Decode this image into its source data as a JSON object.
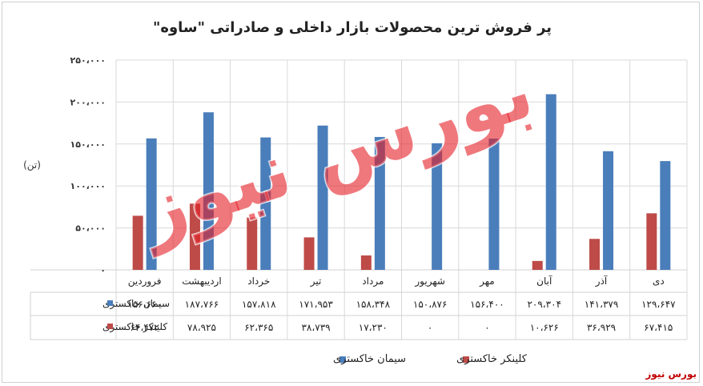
{
  "chart_data": {
    "type": "bar",
    "title": "پر فروش ترین محصولات بازار داخلی و صادراتی \"ساوه\"",
    "ylabel": "(تن)",
    "ylim": [
      0,
      250000
    ],
    "yticks": [
      "۰",
      "۵۰،۰۰۰",
      "۱۰۰،۰۰۰",
      "۱۵۰،۰۰۰",
      "۲۰۰،۰۰۰",
      "۲۵۰،۰۰۰"
    ],
    "categories": [
      "فروردین",
      "اردیبهشت",
      "خرداد",
      "تیر",
      "مرداد",
      "شهریور",
      "مهر",
      "آبان",
      "آذر",
      "دی"
    ],
    "series": [
      {
        "name": "سیمان خاکستری",
        "color": "#4a7ebb",
        "values": [
          156660,
          187766,
          157818,
          171953,
          158348,
          150876,
          156400,
          209304,
          141379,
          129647
        ],
        "labels": [
          "۱۵۶،۶۶۰",
          "۱۸۷،۷۶۶",
          "۱۵۷،۸۱۸",
          "۱۷۱،۹۵۳",
          "۱۵۸،۳۴۸",
          "۱۵۰،۸۷۶",
          "۱۵۶،۴۰۰",
          "۲۰۹،۳۰۴",
          "۱۴۱،۳۷۹",
          "۱۲۹،۶۴۷"
        ]
      },
      {
        "name": "کلینکر خاکستری",
        "color": "#be4b48",
        "values": [
          64472,
          78925,
          62365,
          38739,
          17230,
          0,
          0,
          10626,
          36929,
          67415
        ],
        "labels": [
          "۶۴،۴۷۲",
          "۷۸،۹۲۵",
          "۶۲،۳۶۵",
          "۳۸،۷۳۹",
          "۱۷،۲۳۰",
          "۰",
          "۰",
          "۱۰،۶۲۶",
          "۳۶،۹۲۹",
          "۶۷،۴۱۵"
        ]
      }
    ],
    "grid": true,
    "legend": "bottom",
    "table": true
  },
  "watermark": "بورس نیوز",
  "footer": {
    "logo_text": "بورس نیوز"
  }
}
